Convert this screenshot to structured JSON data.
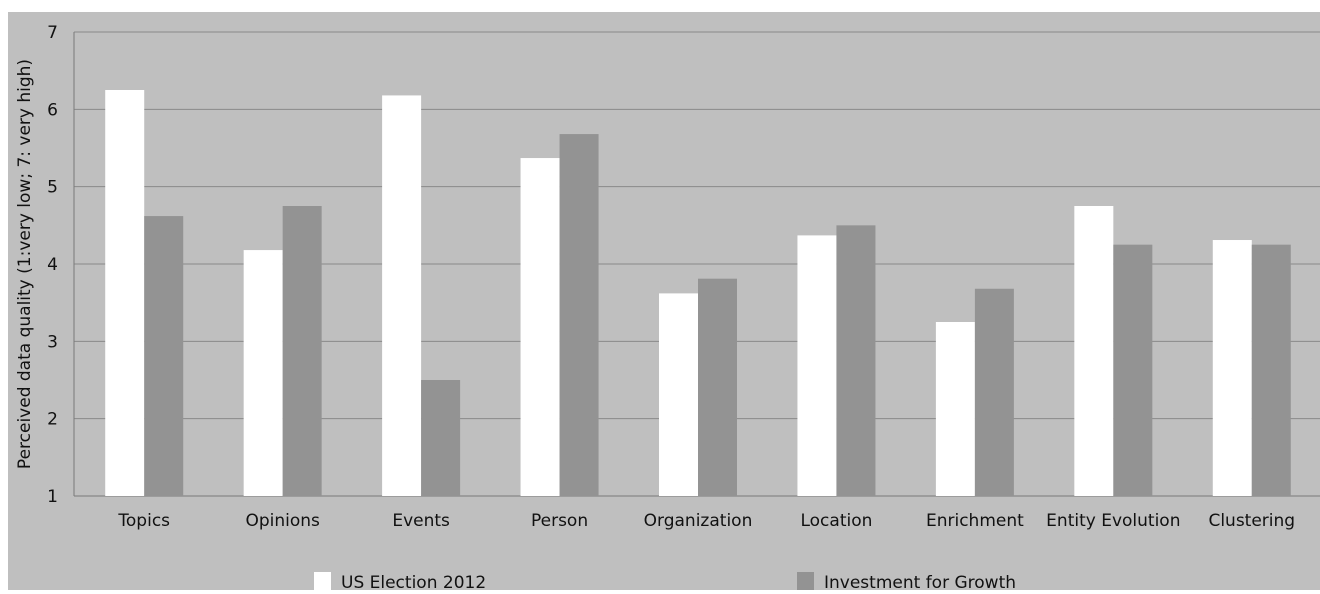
{
  "chart_data": {
    "type": "bar",
    "title": "",
    "xlabel": "",
    "ylabel": "Perceived data quality (1:very low; 7: very high)",
    "ylim": [
      1,
      7
    ],
    "yticks": [
      "1",
      "2",
      "3",
      "4",
      "5",
      "6",
      "7"
    ],
    "grid": true,
    "legend_position": "bottom",
    "categories": [
      "Topics",
      "Opinions",
      "Events",
      "Person",
      "Organization",
      "Location",
      "Enrichment",
      "Entity Evolution",
      "Clustering"
    ],
    "series": [
      {
        "name": "US Election 2012",
        "color": "#ffffff",
        "values": [
          6.25,
          4.18,
          6.18,
          5.37,
          3.62,
          4.37,
          3.25,
          4.75,
          4.31
        ]
      },
      {
        "name": "Investment for Growth",
        "color": "#939393",
        "values": [
          4.62,
          4.75,
          2.5,
          5.68,
          3.81,
          4.5,
          3.68,
          4.25,
          4.25
        ]
      }
    ]
  }
}
